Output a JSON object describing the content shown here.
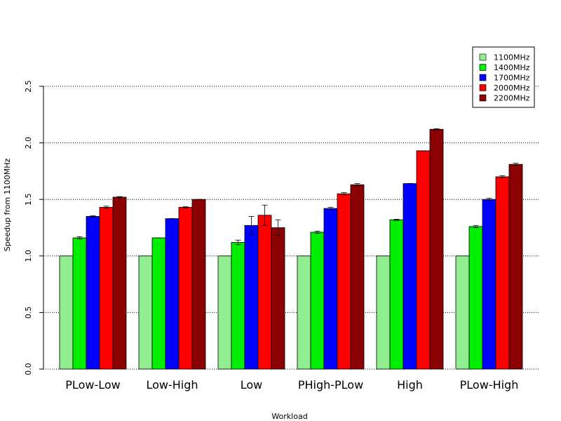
{
  "chart_data": {
    "type": "bar",
    "xlabel": "Workload",
    "ylabel": "Speedup from 1100MHz",
    "ylim": [
      0,
      2.5
    ],
    "yticks": [
      "0.0",
      "0.5",
      "1.0",
      "1.5",
      "2.0",
      "2.5"
    ],
    "grid": "horizontal dotted",
    "legend_position": "top-right",
    "categories": [
      "PLow-Low",
      "Low-High",
      "Low",
      "PHigh-PLow",
      "High",
      "PLow-High"
    ],
    "series": [
      {
        "name": "1100MHz",
        "color": "#90ee90",
        "values": [
          1.0,
          1.0,
          1.0,
          1.0,
          1.0,
          1.0
        ],
        "errors": [
          0,
          0,
          0,
          0,
          0,
          0
        ]
      },
      {
        "name": "1400MHz",
        "color": "#00ee00",
        "values": [
          1.16,
          1.16,
          1.12,
          1.21,
          1.32,
          1.26
        ],
        "errors": [
          0.01,
          0.0,
          0.02,
          0.01,
          0.005,
          0.01
        ]
      },
      {
        "name": "1700MHz",
        "color": "#0000ff",
        "values": [
          1.35,
          1.33,
          1.27,
          1.42,
          1.64,
          1.5
        ],
        "errors": [
          0.005,
          0.0,
          0.08,
          0.01,
          0.0,
          0.01
        ]
      },
      {
        "name": "2000MHz",
        "color": "#ff0000",
        "values": [
          1.43,
          1.43,
          1.36,
          1.55,
          1.93,
          1.7
        ],
        "errors": [
          0.01,
          0.005,
          0.09,
          0.01,
          0.0,
          0.01
        ]
      },
      {
        "name": "2200MHz",
        "color": "#8b0000",
        "values": [
          1.52,
          1.5,
          1.25,
          1.63,
          2.12,
          1.81
        ],
        "errors": [
          0.005,
          0.0,
          0.07,
          0.01,
          0.005,
          0.01
        ]
      }
    ]
  }
}
